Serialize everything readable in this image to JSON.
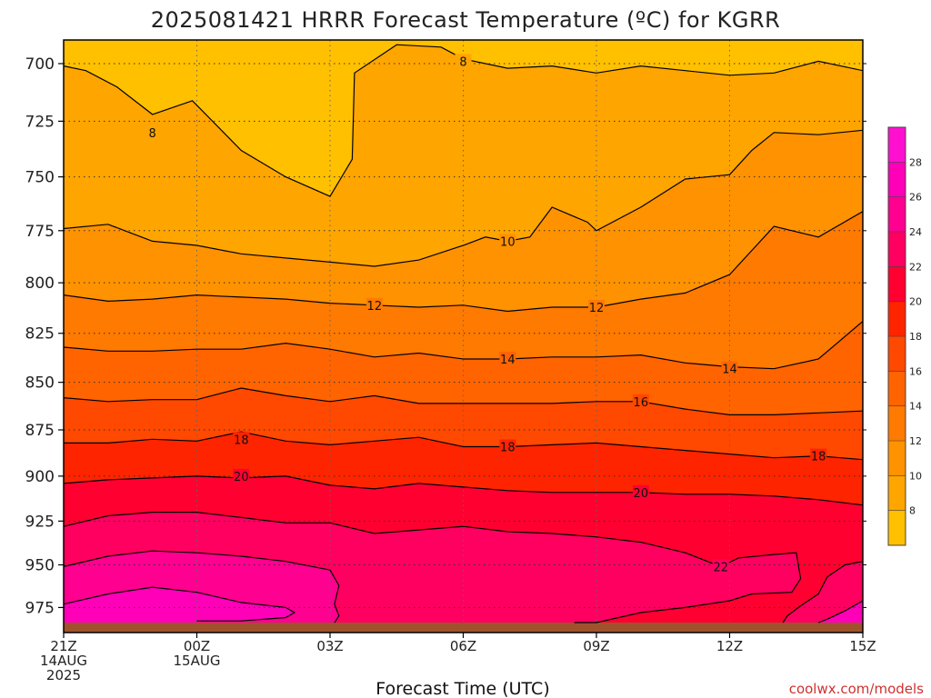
{
  "title": "2025081421 HRRR Forecast Temperature (ºC) for KGRR",
  "credit": "coolwx.com/models",
  "chart_data": {
    "type": "heatmap",
    "title": "2025081421 HRRR Forecast Temperature (ºC) for KGRR",
    "xlabel": "Forecast Time (UTC)",
    "ylabel": "",
    "y_scale": "log-pressure (inverted)",
    "y_range_hPa": [
      690,
      990
    ],
    "x_range_hours": [
      0,
      18
    ],
    "y_ticks": [
      "700",
      "725",
      "750",
      "775",
      "800",
      "825",
      "850",
      "875",
      "900",
      "925",
      "950",
      "975"
    ],
    "x_ticks": [
      {
        "hour": 0,
        "lines": [
          "21Z",
          "14AUG",
          "2025"
        ]
      },
      {
        "hour": 3,
        "lines": [
          "00Z",
          "15AUG"
        ]
      },
      {
        "hour": 6,
        "lines": [
          "03Z"
        ]
      },
      {
        "hour": 9,
        "lines": [
          "06Z"
        ]
      },
      {
        "hour": 12,
        "lines": [
          "09Z"
        ]
      },
      {
        "hour": 15,
        "lines": [
          "12Z"
        ]
      },
      {
        "hour": 18,
        "lines": [
          "15Z"
        ]
      }
    ],
    "grid": "dotted",
    "surface_band_hPa": 984,
    "surface_color": "#a0522d",
    "colorbar": {
      "levels": [
        "8",
        "10",
        "12",
        "14",
        "16",
        "18",
        "20",
        "22",
        "24",
        "26",
        "28"
      ],
      "colors": [
        "#ffc000",
        "#ffa500",
        "#ff9200",
        "#ff7a00",
        "#ff6400",
        "#ff4800",
        "#ff2400",
        "#ff0030",
        "#ff0060",
        "#ff0090",
        "#ff00b8",
        "#ff10d0"
      ]
    },
    "isotherms": [
      {
        "value": 8,
        "points": [
          [
            0,
            701
          ],
          [
            0.5,
            703
          ],
          [
            1.2,
            710
          ],
          [
            2,
            722
          ],
          [
            2.9,
            716
          ],
          [
            4,
            738
          ],
          [
            5,
            750
          ],
          [
            6,
            759
          ],
          [
            6.5,
            742
          ],
          [
            6.55,
            704
          ],
          [
            7.5,
            692
          ],
          [
            8.5,
            693
          ],
          [
            9,
            698
          ],
          [
            10,
            702
          ],
          [
            11,
            701
          ],
          [
            12,
            704
          ],
          [
            13,
            701
          ],
          [
            14,
            703
          ],
          [
            15,
            705
          ],
          [
            16,
            704
          ],
          [
            17,
            699
          ],
          [
            18,
            703
          ]
        ],
        "label_at": [
          [
            9,
            699
          ],
          [
            2,
            730
          ]
        ]
      },
      {
        "value": 10,
        "points": [
          [
            0,
            774
          ],
          [
            1,
            772
          ],
          [
            2,
            780
          ],
          [
            3,
            782
          ],
          [
            4,
            786
          ],
          [
            5,
            788
          ],
          [
            6,
            790
          ],
          [
            7,
            792
          ],
          [
            8,
            789
          ],
          [
            9,
            782
          ],
          [
            9.5,
            778
          ],
          [
            10,
            780
          ],
          [
            10.5,
            778
          ],
          [
            11,
            764
          ],
          [
            11.8,
            771
          ],
          [
            12,
            775
          ],
          [
            13,
            764
          ],
          [
            14,
            751
          ],
          [
            15,
            749
          ],
          [
            15.5,
            738
          ],
          [
            16,
            730
          ],
          [
            17,
            731
          ],
          [
            18,
            729
          ]
        ],
        "label_at": [
          [
            10,
            780
          ]
        ]
      },
      {
        "value": 12,
        "points": [
          [
            0,
            806
          ],
          [
            1,
            809
          ],
          [
            2,
            808
          ],
          [
            3,
            806
          ],
          [
            4,
            807
          ],
          [
            5,
            808
          ],
          [
            6,
            810
          ],
          [
            7,
            811
          ],
          [
            8,
            812
          ],
          [
            9,
            811
          ],
          [
            10,
            814
          ],
          [
            11,
            812
          ],
          [
            12,
            812
          ],
          [
            13,
            808
          ],
          [
            14,
            805
          ],
          [
            15,
            796
          ],
          [
            16,
            773
          ],
          [
            17,
            778
          ],
          [
            18,
            766
          ]
        ],
        "label_at": [
          [
            7,
            811
          ],
          [
            12,
            812
          ]
        ]
      },
      {
        "value": 14,
        "points": [
          [
            0,
            832
          ],
          [
            1,
            834
          ],
          [
            2,
            834
          ],
          [
            3,
            833
          ],
          [
            4,
            833
          ],
          [
            5,
            830
          ],
          [
            6,
            833
          ],
          [
            7,
            837
          ],
          [
            8,
            835
          ],
          [
            9,
            838
          ],
          [
            10,
            838
          ],
          [
            11,
            837
          ],
          [
            12,
            837
          ],
          [
            13,
            836
          ],
          [
            14,
            840
          ],
          [
            15,
            842
          ],
          [
            16,
            843
          ],
          [
            17,
            838
          ],
          [
            18,
            819
          ]
        ],
        "label_at": [
          [
            10,
            838
          ],
          [
            15,
            843
          ]
        ]
      },
      {
        "value": 16,
        "points": [
          [
            0,
            858
          ],
          [
            1,
            860
          ],
          [
            2,
            859
          ],
          [
            3,
            859
          ],
          [
            4,
            853
          ],
          [
            5,
            857
          ],
          [
            6,
            860
          ],
          [
            7,
            857
          ],
          [
            8,
            861
          ],
          [
            9,
            861
          ],
          [
            10,
            861
          ],
          [
            11,
            861
          ],
          [
            12,
            860
          ],
          [
            13,
            860
          ],
          [
            14,
            864
          ],
          [
            15,
            867
          ],
          [
            16,
            867
          ],
          [
            17,
            866
          ],
          [
            18,
            865
          ]
        ],
        "label_at": [
          [
            13,
            860
          ]
        ]
      },
      {
        "value": 18,
        "points": [
          [
            0,
            882
          ],
          [
            1,
            882
          ],
          [
            2,
            880
          ],
          [
            3,
            881
          ],
          [
            4,
            876
          ],
          [
            5,
            881
          ],
          [
            6,
            883
          ],
          [
            7,
            881
          ],
          [
            8,
            879
          ],
          [
            9,
            884
          ],
          [
            10,
            884
          ],
          [
            11,
            883
          ],
          [
            12,
            882
          ],
          [
            13,
            884
          ],
          [
            14,
            886
          ],
          [
            15,
            888
          ],
          [
            16,
            890
          ],
          [
            17,
            889
          ],
          [
            18,
            891
          ]
        ],
        "label_at": [
          [
            4,
            880
          ],
          [
            10,
            884
          ],
          [
            17,
            889
          ]
        ]
      },
      {
        "value": 20,
        "points": [
          [
            0,
            904
          ],
          [
            1,
            902
          ],
          [
            2,
            901
          ],
          [
            3,
            900
          ],
          [
            4,
            901
          ],
          [
            5,
            900
          ],
          [
            6,
            905
          ],
          [
            7,
            907
          ],
          [
            8,
            904
          ],
          [
            9,
            906
          ],
          [
            10,
            908
          ],
          [
            11,
            909
          ],
          [
            12,
            909
          ],
          [
            13,
            909
          ],
          [
            14,
            910
          ],
          [
            15,
            910
          ],
          [
            16,
            911
          ],
          [
            17,
            913
          ],
          [
            18,
            916
          ]
        ],
        "label_at": [
          [
            4,
            900
          ],
          [
            13,
            909
          ]
        ]
      },
      {
        "value": 22,
        "points": [
          [
            0,
            928
          ],
          [
            1,
            922
          ],
          [
            2,
            920
          ],
          [
            3,
            920
          ],
          [
            4,
            923
          ],
          [
            5,
            926
          ],
          [
            6,
            926
          ],
          [
            7,
            932
          ],
          [
            8,
            930
          ],
          [
            9,
            928
          ],
          [
            10,
            931
          ],
          [
            11,
            932
          ],
          [
            12,
            934
          ],
          [
            13,
            937
          ],
          [
            14,
            943
          ],
          [
            14.8,
            951
          ],
          [
            15.2,
            946
          ],
          [
            16,
            944
          ],
          [
            16.5,
            943
          ],
          [
            16.6,
            958
          ],
          [
            16.4,
            966
          ],
          [
            15.5,
            967
          ],
          [
            15,
            971
          ],
          [
            14,
            975
          ],
          [
            13,
            978
          ],
          [
            12,
            984
          ],
          [
            11.5,
            984
          ]
        ],
        "label_at": [
          [
            14.8,
            951
          ]
        ]
      },
      {
        "value": 22,
        "points": [
          [
            18,
            948
          ],
          [
            17.6,
            950
          ],
          [
            17.2,
            957
          ],
          [
            17,
            967
          ],
          [
            16.6,
            974
          ],
          [
            16.3,
            980
          ],
          [
            16.2,
            984
          ]
        ],
        "label_at": []
      },
      {
        "value": 24,
        "points": [
          [
            0,
            951
          ],
          [
            1,
            945
          ],
          [
            2,
            942
          ],
          [
            3,
            943
          ],
          [
            4,
            945
          ],
          [
            5,
            948
          ],
          [
            6,
            953
          ],
          [
            6.2,
            962
          ],
          [
            6.1,
            973
          ],
          [
            6.2,
            980
          ],
          [
            6.1,
            984
          ]
        ],
        "label_at": []
      },
      {
        "value": 26,
        "points": [
          [
            0,
            973
          ],
          [
            1,
            967
          ],
          [
            2,
            963
          ],
          [
            3,
            966
          ],
          [
            4,
            972
          ],
          [
            5,
            975
          ],
          [
            5.2,
            978
          ],
          [
            5,
            981
          ],
          [
            4,
            983
          ],
          [
            3,
            983
          ]
        ],
        "label_at": []
      },
      {
        "value": 26,
        "points": [
          [
            18,
            971
          ],
          [
            17.6,
            977
          ],
          [
            17.2,
            982
          ],
          [
            17,
            984
          ]
        ],
        "label_at": []
      }
    ]
  }
}
